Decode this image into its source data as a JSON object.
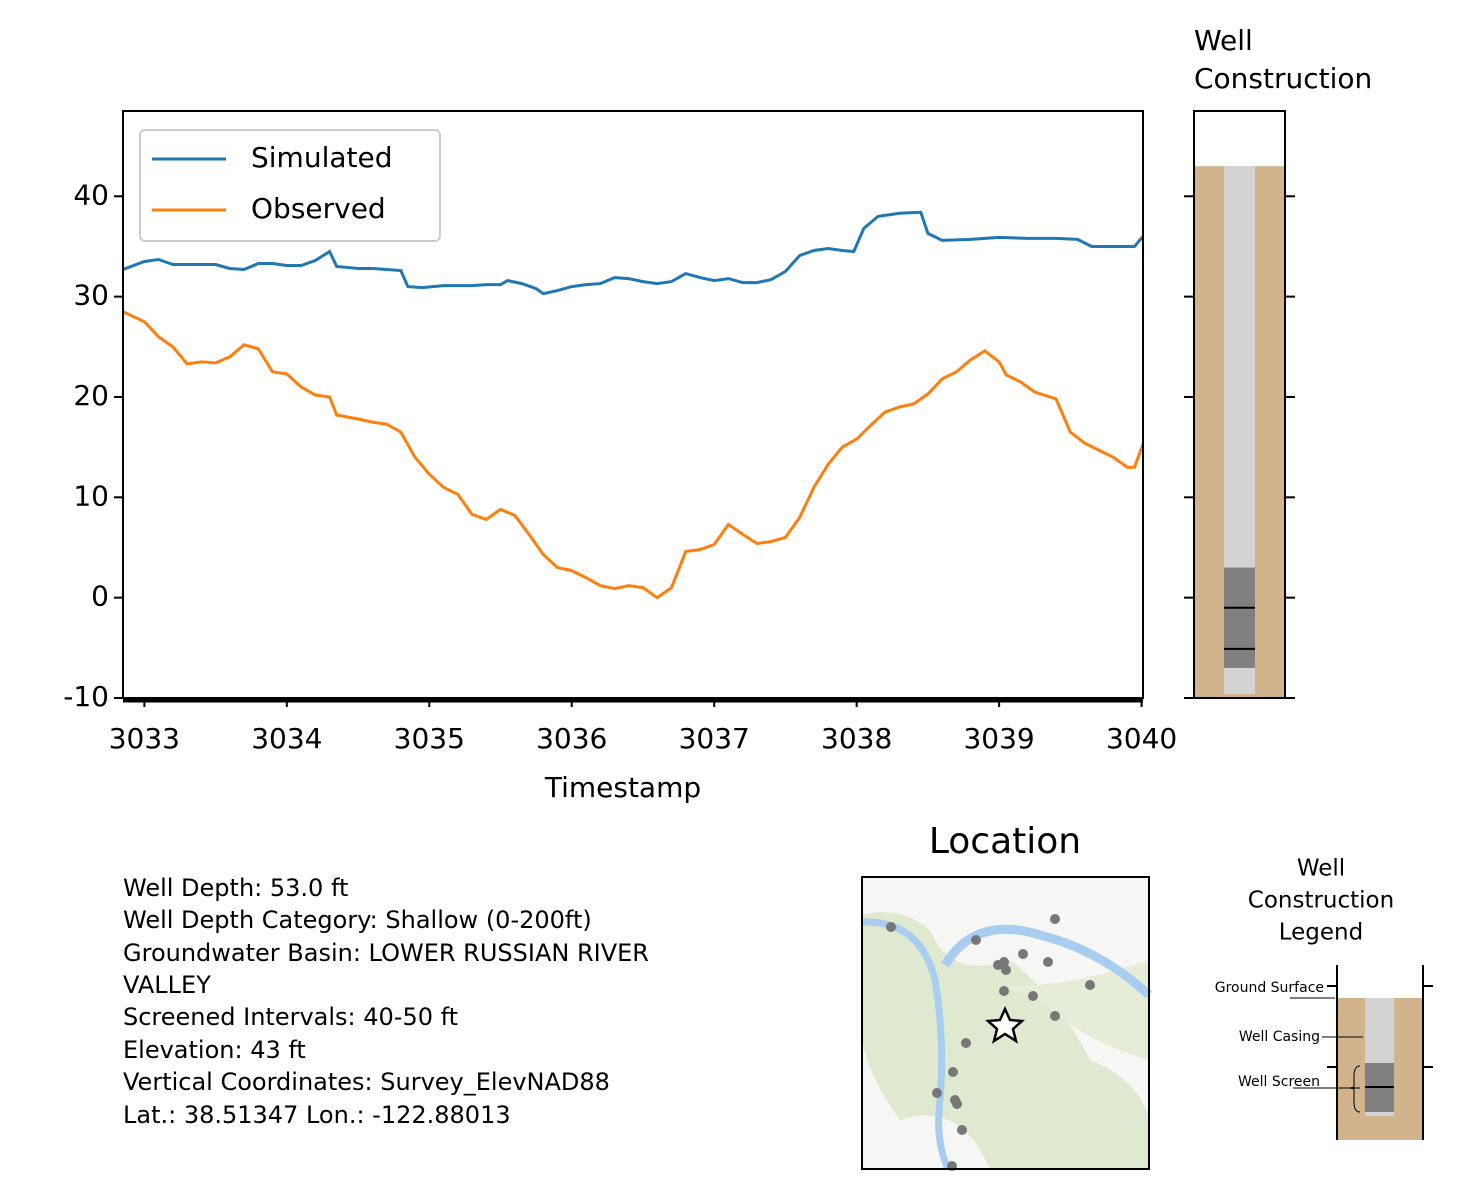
{
  "chart_data": [
    {
      "type": "line",
      "xlabel": "Timestamp",
      "xlim": [
        3032.85,
        3040.01
      ],
      "xticks": [
        3033,
        3034,
        3035,
        3036,
        3037,
        3038,
        3039,
        3040
      ],
      "ylim": [
        -10,
        48.5
      ],
      "yticks": [
        -10,
        0,
        10,
        20,
        30,
        40
      ],
      "legend": "upper left",
      "series": [
        {
          "name": "Simulated",
          "color": "#1f77b4",
          "x": [
            3032.85,
            3033,
            3033.1,
            3033.2,
            3033.3,
            3033.4,
            3033.5,
            3033.6,
            3033.7,
            3033.8,
            3033.9,
            3034,
            3034.1,
            3034.2,
            3034.3,
            3034.35,
            3034.5,
            3034.6,
            3034.7,
            3034.8,
            3034.85,
            3034.95,
            3035.1,
            3035.3,
            3035.4,
            3035.5,
            3035.55,
            3035.65,
            3035.75,
            3035.8,
            3035.9,
            3036,
            3036.1,
            3036.2,
            3036.3,
            3036.4,
            3036.5,
            3036.6,
            3036.7,
            3036.8,
            3036.9,
            3037,
            3037.1,
            3037.2,
            3037.3,
            3037.4,
            3037.5,
            3037.6,
            3037.7,
            3037.8,
            3037.9,
            3037.98,
            3038.05,
            3038.15,
            3038.3,
            3038.45,
            3038.5,
            3038.6,
            3038.8,
            3039,
            3039.2,
            3039.4,
            3039.55,
            3039.65,
            3039.8,
            3039.95,
            3040.01
          ],
          "values": [
            32.7,
            33.5,
            33.7,
            33.2,
            33.2,
            33.2,
            33.2,
            32.8,
            32.7,
            33.3,
            33.3,
            33.1,
            33.1,
            33.6,
            34.5,
            33.0,
            32.8,
            32.8,
            32.7,
            32.6,
            31.0,
            30.9,
            31.1,
            31.1,
            31.2,
            31.2,
            31.6,
            31.3,
            30.8,
            30.3,
            30.6,
            31.0,
            31.2,
            31.3,
            31.9,
            31.8,
            31.5,
            31.3,
            31.5,
            32.3,
            31.9,
            31.6,
            31.8,
            31.4,
            31.4,
            31.7,
            32.5,
            34.1,
            34.6,
            34.8,
            34.6,
            34.5,
            36.8,
            38.0,
            38.3,
            38.4,
            36.3,
            35.6,
            35.7,
            35.9,
            35.8,
            35.8,
            35.7,
            35.0,
            35.0,
            35.0,
            36.0
          ]
        },
        {
          "name": "Observed",
          "color": "#ff7f0e",
          "x": [
            3032.85,
            3033,
            3033.1,
            3033.2,
            3033.3,
            3033.4,
            3033.5,
            3033.6,
            3033.7,
            3033.8,
            3033.9,
            3034,
            3034.1,
            3034.2,
            3034.3,
            3034.35,
            3034.5,
            3034.6,
            3034.7,
            3034.8,
            3034.9,
            3035,
            3035.1,
            3035.2,
            3035.3,
            3035.4,
            3035.5,
            3035.6,
            3035.7,
            3035.8,
            3035.9,
            3036,
            3036.1,
            3036.2,
            3036.3,
            3036.4,
            3036.5,
            3036.6,
            3036.7,
            3036.8,
            3036.9,
            3037,
            3037.1,
            3037.2,
            3037.3,
            3037.4,
            3037.5,
            3037.6,
            3037.7,
            3037.8,
            3037.9,
            3038,
            3038.1,
            3038.2,
            3038.3,
            3038.4,
            3038.5,
            3038.6,
            3038.7,
            3038.8,
            3038.9,
            3039,
            3039.05,
            3039.15,
            3039.25,
            3039.4,
            3039.5,
            3039.6,
            3039.8,
            3039.9,
            3039.95,
            3040.01
          ],
          "values": [
            28.5,
            27.5,
            26.0,
            25.0,
            23.3,
            23.5,
            23.4,
            24.0,
            25.2,
            24.8,
            22.5,
            22.3,
            21.0,
            20.2,
            20.0,
            18.2,
            17.8,
            17.5,
            17.3,
            16.5,
            14.0,
            12.3,
            11.0,
            10.3,
            8.3,
            7.8,
            8.8,
            8.2,
            6.3,
            4.3,
            3.0,
            2.7,
            2.0,
            1.2,
            0.9,
            1.2,
            1.0,
            0,
            1.0,
            4.6,
            4.8,
            5.3,
            7.3,
            6.3,
            5.4,
            5.6,
            6.0,
            8.0,
            11.0,
            13.3,
            15.0,
            15.8,
            17.2,
            18.5,
            19.0,
            19.3,
            20.3,
            21.8,
            22.5,
            23.7,
            24.6,
            23.5,
            22.2,
            21.5,
            20.5,
            19.8,
            16.5,
            15.4,
            14.0,
            13.0,
            13.0,
            15.3
          ]
        }
      ]
    },
    {
      "type": "well",
      "title": [
        "Well",
        "Construction"
      ],
      "ylim": [
        -10,
        48.5
      ],
      "yticks": [
        -10,
        0,
        10,
        20,
        30,
        40
      ],
      "ground_elevation": 43,
      "well_depth": 53,
      "screen_top_depth": 40,
      "screen_bottom_depth": 50
    }
  ],
  "info": [
    "Well Depth: 53.0 ft",
    "Well Depth Category: Shallow (0-200ft)",
    "Groundwater Basin: LOWER RUSSIAN RIVER",
    "VALLEY",
    "Screened Intervals: 40-50 ft",
    "Elevation: 43 ft",
    "Vertical Coordinates: Survey_ElevNAD88",
    "Lat.: 38.51347 Lon.: -122.88013"
  ],
  "location": {
    "title": "Location"
  },
  "well_legend": {
    "title": [
      "Well",
      "Construction",
      "Legend"
    ],
    "labels": [
      "Ground Surface",
      "Well Casing",
      "Well Screen"
    ]
  }
}
